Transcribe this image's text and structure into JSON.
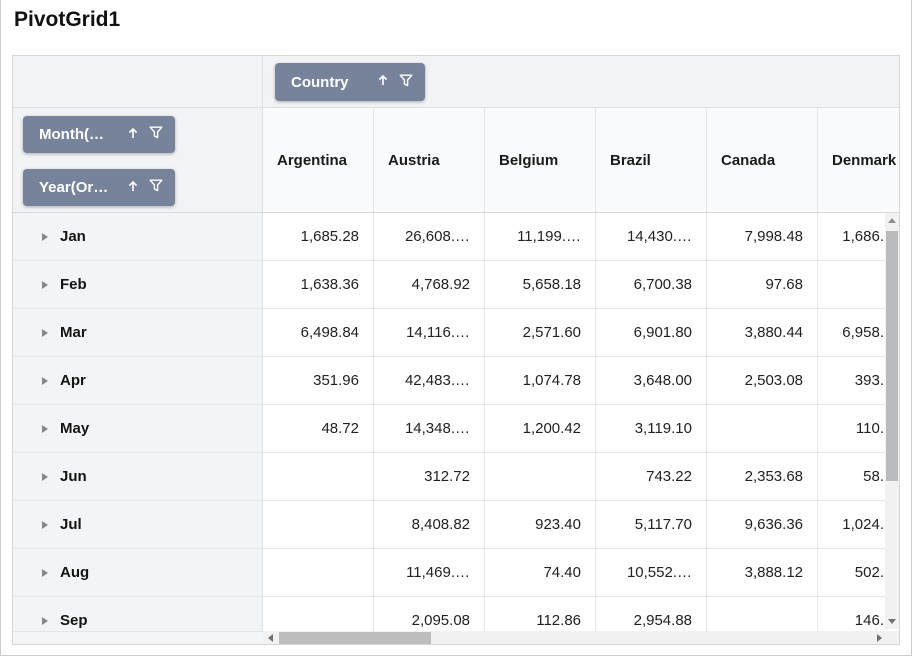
{
  "title": "PivotGrid1",
  "colors": {
    "accent_button": "#76839B",
    "header_area_bg": "#F1F3F5",
    "row_label_bg": "#F2F4F6",
    "scroll_thumb": "#BDBDBD",
    "grid_line": "#E3E5E7"
  },
  "fields": {
    "column_field": {
      "label": "Country"
    },
    "row_fields": [
      {
        "label": "Month(…"
      },
      {
        "label": "Year(Or…"
      }
    ]
  },
  "columns": [
    "Argentina",
    "Austria",
    "Belgium",
    "Brazil",
    "Canada",
    "Denmark"
  ],
  "rows": [
    {
      "label": "Jan",
      "values": [
        "1,685.28",
        "26,608.…",
        "11,199.…",
        "14,430.…",
        "7,998.48",
        "1,686."
      ]
    },
    {
      "label": "Feb",
      "values": [
        "1,638.36",
        "4,768.92",
        "5,658.18",
        "6,700.38",
        "97.68",
        ""
      ]
    },
    {
      "label": "Mar",
      "values": [
        "6,498.84",
        "14,116.…",
        "2,571.60",
        "6,901.80",
        "3,880.44",
        "6,958."
      ]
    },
    {
      "label": "Apr",
      "values": [
        "351.96",
        "42,483.…",
        "1,074.78",
        "3,648.00",
        "2,503.08",
        "393."
      ]
    },
    {
      "label": "May",
      "values": [
        "48.72",
        "14,348.…",
        "1,200.42",
        "3,119.10",
        "",
        "110."
      ]
    },
    {
      "label": "Jun",
      "values": [
        "",
        "312.72",
        "",
        "743.22",
        "2,353.68",
        "58."
      ]
    },
    {
      "label": "Jul",
      "values": [
        "",
        "8,408.82",
        "923.40",
        "5,117.70",
        "9,636.36",
        "1,024."
      ]
    },
    {
      "label": "Aug",
      "values": [
        "",
        "11,469.…",
        "74.40",
        "10,552.…",
        "3,888.12",
        "502."
      ]
    },
    {
      "label": "Sep",
      "values": [
        "",
        "2,095.08",
        "112.86",
        "2,954.88",
        "",
        "146."
      ]
    }
  ]
}
